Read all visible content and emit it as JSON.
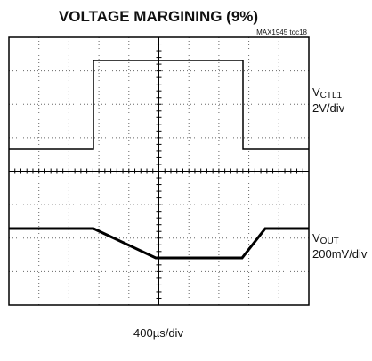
{
  "title": "VOLTAGE MARGINING (9%)",
  "note": "MAX1945 toc18",
  "channels": [
    {
      "symbol": "V",
      "subscript": "CTL1",
      "scale": "2V/div"
    },
    {
      "symbol": "V",
      "subscript": "OUT",
      "scale": "200mV/div"
    }
  ],
  "time_scale": "400µs/div"
}
